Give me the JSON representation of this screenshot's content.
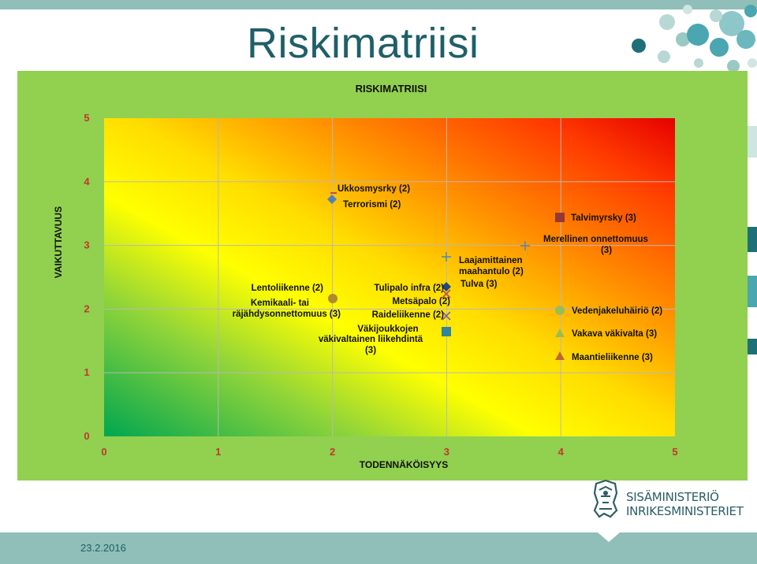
{
  "slide": {
    "title": "Riskimatriisi",
    "date": "23.2.2016"
  },
  "logo": {
    "line1": "SISÄMINISTERIÖ",
    "line2": "INRIKESMINISTERIET",
    "icon": "lion-coat-of-arms-icon"
  },
  "colors": {
    "band": "#8fbfb8",
    "title": "#1f5f68",
    "chart_bg": "#92d050",
    "tick": "#c0392b"
  },
  "chart_data": {
    "type": "scatter",
    "title": "RISKIMATRIISI",
    "xlabel": "TODENNÄKÖISYYS",
    "ylabel": "VAIKUTTAVUUS",
    "xlim": [
      0,
      5
    ],
    "ylim": [
      0,
      5
    ],
    "xticks": [
      "0",
      "1",
      "2",
      "3",
      "4",
      "5"
    ],
    "yticks": [
      "0",
      "1",
      "2",
      "3",
      "4",
      "5"
    ],
    "grid": true,
    "background": "diagonal gradient green (low-left) to yellow to red (high-right)",
    "points": [
      {
        "x": 2,
        "y": 4.0,
        "marker": "dash",
        "color": "#c0504d",
        "label": "Ukkosmysrky (2)"
      },
      {
        "x": 2,
        "y": 3.75,
        "marker": "diamond",
        "color": "#4f81bd",
        "label": "Terrorismi (2)"
      },
      {
        "x": 2,
        "y": 2.2,
        "marker": "circle",
        "color": "#b08a2e",
        "label": "Lentoliikenne (2)"
      },
      {
        "x": 2,
        "y": 2.2,
        "marker": "none",
        "color": "#b08a2e",
        "label": "Kemikaali- tai"
      },
      {
        "x": 2,
        "y": 2.2,
        "marker": "none",
        "color": "#b08a2e",
        "label": "räjähdysonnettomuus (3)"
      },
      {
        "x": 3,
        "y": 2.38,
        "marker": "diamond",
        "color": "#1f497d",
        "label": "Tulipalo infra (2)"
      },
      {
        "x": 3,
        "y": 2.28,
        "marker": "x",
        "color": "#c0504d",
        "label": "Metsäpalo (2)"
      },
      {
        "x": 3,
        "y": 1.92,
        "marker": "x",
        "color": "#8064a2",
        "label": "Raideliikenne (2)"
      },
      {
        "x": 3,
        "y": 1.62,
        "marker": "square",
        "color": "#31859c",
        "label": "Väkijoukkojen"
      },
      {
        "x": 3,
        "y": 1.62,
        "marker": "none",
        "color": "#31859c",
        "label": "väkivaltainen liikehdintä"
      },
      {
        "x": 3,
        "y": 1.62,
        "marker": "none",
        "color": "#31859c",
        "label": "(3)"
      },
      {
        "x": 3,
        "y": 2.85,
        "marker": "plus",
        "color": "#4f81bd",
        "label": "Laajamittainen"
      },
      {
        "x": 3,
        "y": 2.85,
        "marker": "none",
        "color": "#4f81bd",
        "label": "maahantulo (2)"
      },
      {
        "x": 3,
        "y": 2.85,
        "marker": "none",
        "color": "#4f81bd",
        "label": "Tulva (3)"
      },
      {
        "x": 3.7,
        "y": 3.0,
        "marker": "plus",
        "color": "#4f81bd",
        "label": "Merellinen onnettomuus"
      },
      {
        "x": 3.7,
        "y": 3.0,
        "marker": "none",
        "color": "#4f81bd",
        "label": "(3)"
      },
      {
        "x": 4,
        "y": 3.45,
        "marker": "square",
        "color": "#953735",
        "label": "Talvimyrsky (3)"
      },
      {
        "x": 4,
        "y": 2.0,
        "marker": "circle",
        "color": "#9bbb59",
        "label": "Vedenjakeluhäiriö (2)"
      },
      {
        "x": 4,
        "y": 1.62,
        "marker": "triangle",
        "color": "#9bbb59",
        "label": "Vakava väkivalta (3)"
      },
      {
        "x": 4,
        "y": 1.27,
        "marker": "triangle",
        "color": "#c0672e",
        "label": "Maantieliikenne (3)"
      }
    ]
  }
}
